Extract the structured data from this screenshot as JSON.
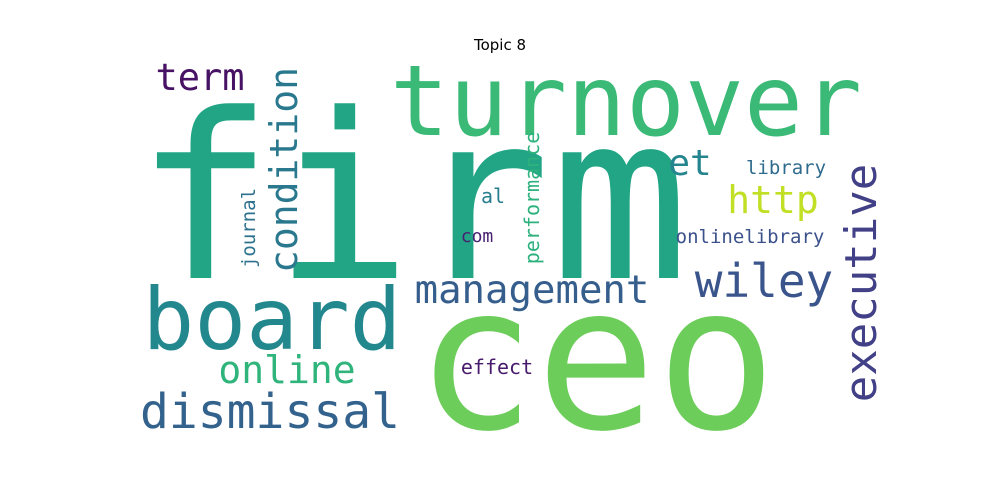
{
  "title": "Topic 8",
  "words": [
    {
      "text": "firm",
      "color": "#21a585"
    },
    {
      "text": "ceo",
      "color": "#6ccd5a"
    },
    {
      "text": "turnover",
      "color": "#3aba76"
    },
    {
      "text": "board",
      "color": "#23888e"
    },
    {
      "text": "dismissal",
      "color": "#33628d"
    },
    {
      "text": "executive",
      "color": "#424086"
    },
    {
      "text": "management",
      "color": "#355e8d"
    },
    {
      "text": "wiley",
      "color": "#3a548c"
    },
    {
      "text": "condition",
      "color": "#2a788e"
    },
    {
      "text": "term",
      "color": "#471164"
    },
    {
      "text": "online",
      "color": "#2fb47c"
    },
    {
      "text": "et",
      "color": "#25858e"
    },
    {
      "text": "http",
      "color": "#c0df25"
    },
    {
      "text": "performance",
      "color": "#2db27d"
    },
    {
      "text": "library",
      "color": "#2f6b8e"
    },
    {
      "text": "onlinelibrary",
      "color": "#3b518b"
    },
    {
      "text": "al",
      "color": "#287d8e"
    },
    {
      "text": "com",
      "color": "#482071"
    },
    {
      "text": "journal",
      "color": "#2c718e"
    },
    {
      "text": "effect",
      "color": "#481a6c"
    }
  ]
}
